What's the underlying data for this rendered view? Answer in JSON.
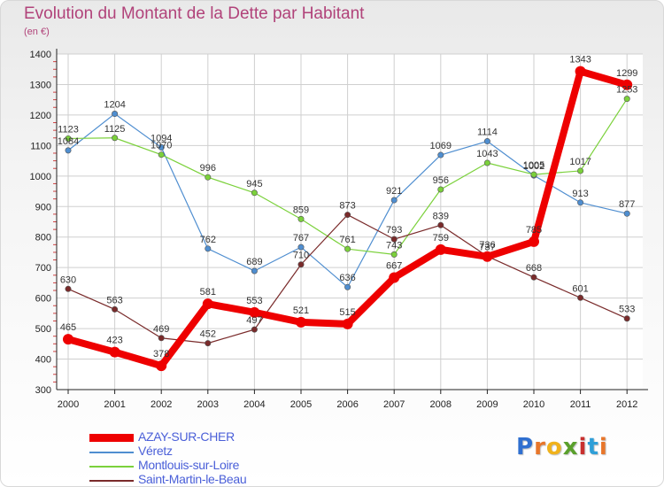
{
  "title": "Evolution du Montant de la Dette par Habitant",
  "unit": "(en €)",
  "logo": {
    "letters": [
      "P",
      "r",
      "o",
      "x",
      "i",
      "t",
      "i"
    ],
    "colors": [
      "#2f6fd0",
      "#e8762a",
      "#f0b21c",
      "#5aa02c",
      "#c8302e",
      "#2f9fd8",
      "#e8762a"
    ]
  },
  "chart_data": {
    "type": "line",
    "title": "Evolution du Montant de la Dette par Habitant",
    "ylabel": "(en €)",
    "xlabel": "",
    "x": [
      "2000",
      "2001",
      "2002",
      "2003",
      "2004",
      "2005",
      "2006",
      "2007",
      "2008",
      "2009",
      "2010",
      "2011",
      "2012"
    ],
    "ylim": [
      300,
      1400
    ],
    "yticks": [
      300,
      400,
      500,
      600,
      700,
      800,
      900,
      1000,
      1100,
      1200,
      1300,
      1400
    ],
    "grid": true,
    "legend": "bottom-left",
    "series": [
      {
        "name": "AZAY-SUR-CHER",
        "color": "#ee0000",
        "values": [
          465,
          423,
          378,
          581,
          553,
          521,
          515,
          667,
          759,
          736,
          785,
          1343,
          1299
        ]
      },
      {
        "name": "Véretz",
        "color": "#4f8ed0",
        "values": [
          1084,
          1204,
          1094,
          762,
          689,
          767,
          636,
          921,
          1069,
          1114,
          1002,
          913,
          877
        ]
      },
      {
        "name": "Montlouis-sur-Loire",
        "color": "#7bd13b",
        "values": [
          1123,
          1125,
          1070,
          996,
          945,
          859,
          761,
          743,
          956,
          1043,
          1005,
          1017,
          1253
        ]
      },
      {
        "name": "Saint-Martin-le-Beau",
        "color": "#7a2b2b",
        "values": [
          630,
          563,
          469,
          452,
          497,
          710,
          873,
          793,
          839,
          737,
          668,
          601,
          533
        ]
      }
    ]
  }
}
